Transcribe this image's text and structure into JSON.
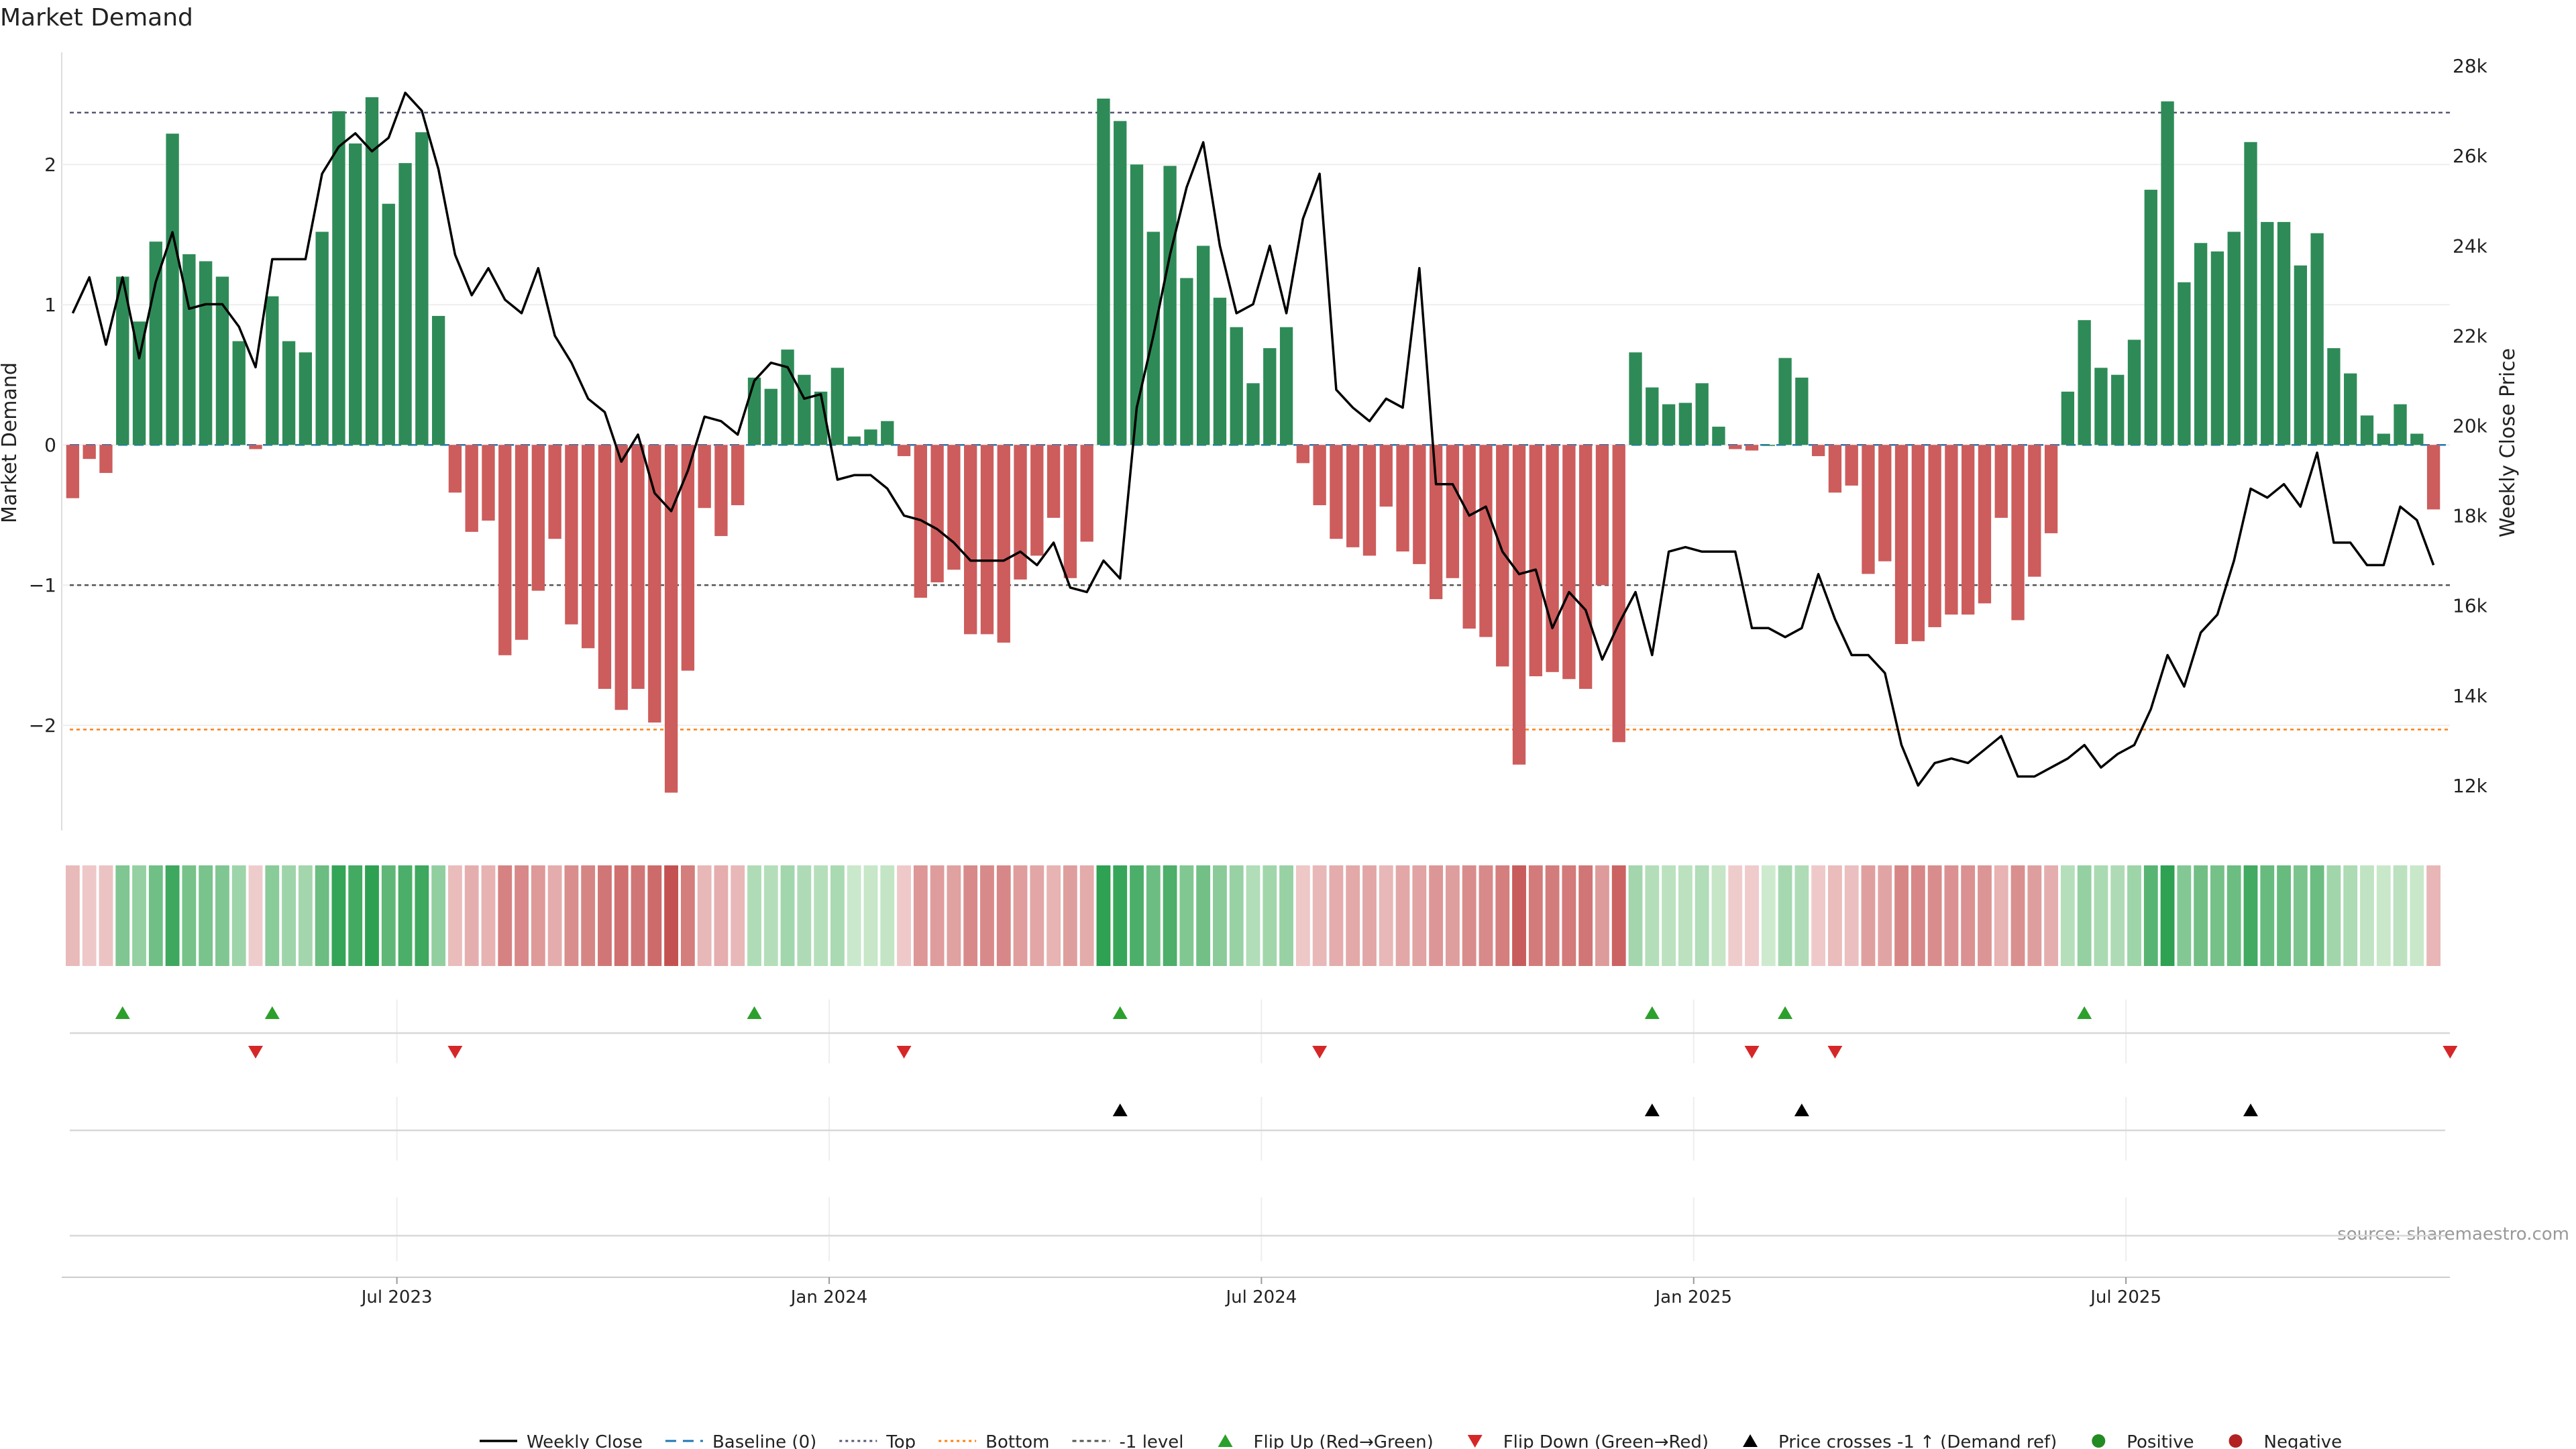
{
  "chart_data": {
    "type": "bar",
    "title": "Market Demand",
    "ylabel": "Market Demand",
    "ylabel_right": "Weekly Close Price",
    "source": "source: sharemaestro.com",
    "ylim": [
      -2.75,
      2.8
    ],
    "ylim_right": [
      11000,
      28300
    ],
    "yticks": [
      "2",
      "1",
      "0",
      "−1",
      "−2"
    ],
    "ytick_values": [
      2,
      1,
      0,
      -1,
      -2
    ],
    "yticks_right": [
      "28k",
      "26k",
      "24k",
      "22k",
      "20k",
      "18k",
      "16k",
      "14k",
      "12k"
    ],
    "ytick_right_values": [
      28000,
      26000,
      24000,
      22000,
      20000,
      18000,
      16000,
      14000,
      12000
    ],
    "xticks": [
      "Jul 2023",
      "Jan 2024",
      "Jul 2024",
      "Jan 2025",
      "Jul 2025"
    ],
    "xtick_indices": [
      20,
      46,
      72,
      98,
      124
    ],
    "reference_lines": {
      "top": 2.37,
      "bottom": -2.03,
      "minus_one": -1,
      "baseline": 0
    },
    "grid": true,
    "legend_position": "bottom",
    "series": [
      {
        "name": "Market Demand",
        "values": [
          -0.38,
          -0.1,
          -0.2,
          1.2,
          0.88,
          1.45,
          2.22,
          1.36,
          1.31,
          1.2,
          0.74,
          -0.03,
          1.06,
          0.74,
          0.66,
          1.52,
          2.38,
          2.15,
          2.48,
          1.72,
          2.01,
          2.23,
          0.92,
          -0.34,
          -0.62,
          -0.54,
          -1.5,
          -1.39,
          -1.04,
          -0.67,
          -1.28,
          -1.45,
          -1.74,
          -1.89,
          -1.74,
          -1.98,
          -2.48,
          -1.61,
          -0.45,
          -0.65,
          -0.43,
          0.48,
          0.4,
          0.68,
          0.5,
          0.38,
          0.55,
          0.06,
          0.11,
          0.17,
          -0.08,
          -1.09,
          -0.98,
          -0.89,
          -1.35,
          -1.35,
          -1.41,
          -0.96,
          -0.79,
          -0.52,
          -0.95,
          -0.69,
          2.47,
          2.31,
          2.0,
          1.52,
          1.99,
          1.19,
          1.42,
          1.05,
          0.84,
          0.44,
          0.69,
          0.84,
          -0.13,
          -0.43,
          -0.67,
          -0.73,
          -0.79,
          -0.44,
          -0.76,
          -0.85,
          -1.1,
          -0.95,
          -1.31,
          -1.37,
          -1.58,
          -2.28,
          -1.65,
          -1.62,
          -1.67,
          -1.74,
          -1.0,
          -2.12,
          0.66,
          0.41,
          0.29,
          0.3,
          0.44,
          0.13,
          -0.03,
          -0.04,
          0.0,
          0.62,
          0.48,
          -0.08,
          -0.34,
          -0.29,
          -0.92,
          -0.83,
          -1.42,
          -1.4,
          -1.3,
          -1.21,
          -1.21,
          -1.13,
          -0.52,
          -1.25,
          -0.94,
          -0.63,
          0.38,
          0.89,
          0.55,
          0.5,
          0.75,
          1.82,
          2.45,
          1.16,
          1.44,
          1.38,
          1.52,
          2.16,
          1.59,
          1.59,
          1.28,
          1.51,
          0.69,
          0.51,
          0.21,
          0.08,
          0.29,
          0.08,
          -0.46
        ]
      },
      {
        "name": "Weekly Close",
        "values": [
          22500,
          23300,
          21800,
          23300,
          21500,
          23200,
          24300,
          22600,
          22700,
          22700,
          22200,
          21300,
          23700,
          23700,
          23700,
          25600,
          26200,
          26500,
          26100,
          26400,
          27400,
          27000,
          25700,
          23800,
          22900,
          23500,
          22800,
          22500,
          23500,
          22000,
          21400,
          20600,
          20300,
          19200,
          19800,
          18500,
          18100,
          19000,
          20200,
          20100,
          19800,
          21000,
          21400,
          21300,
          20600,
          20700,
          18800,
          18900,
          18900,
          18600,
          18000,
          17900,
          17700,
          17400,
          17000,
          17000,
          17000,
          17200,
          16900,
          17400,
          16400,
          16300,
          17000,
          16600,
          20400,
          22000,
          23800,
          25300,
          26300,
          24000,
          22500,
          22700,
          24000,
          22500,
          24600,
          25600,
          20800,
          20400,
          20100,
          20600,
          20400,
          23500,
          18700,
          18700,
          18000,
          18200,
          17200,
          16700,
          16800,
          15500,
          16300,
          15900,
          14800,
          15600,
          16300,
          14900,
          17200,
          17300,
          17200,
          17200,
          17200,
          15500,
          15500,
          15300,
          15500,
          16700,
          15700,
          14900,
          14900,
          14500,
          12900,
          12000,
          12500,
          12600,
          12500,
          12800,
          13100,
          12200,
          12200,
          12400,
          12600,
          12900,
          12400,
          12700,
          12900,
          13700,
          14900,
          14200,
          15400,
          15800,
          17000,
          18600,
          18400,
          18700,
          18200,
          19400,
          17400,
          17400,
          16900,
          16900,
          18200,
          17900,
          16900
        ]
      }
    ],
    "markers": {
      "flip_up_indices": [
        3,
        12,
        41,
        63,
        95,
        103,
        121
      ],
      "flip_down_indices": [
        11,
        23,
        50,
        75,
        101,
        106,
        143
      ],
      "price_cross_indices": [
        63,
        95,
        104,
        131
      ]
    },
    "legend": [
      {
        "label": "Weekly Close",
        "kind": "line",
        "color": "#000000"
      },
      {
        "label": "Baseline (0)",
        "kind": "dashed",
        "color": "#1f77b4"
      },
      {
        "label": "Top",
        "kind": "dotted",
        "color": "#555577"
      },
      {
        "label": "Bottom",
        "kind": "dotted",
        "color": "#ff7f0e"
      },
      {
        "label": "-1 level",
        "kind": "dashed",
        "color": "#555555"
      },
      {
        "label": "Flip Up (Red→Green)",
        "kind": "tri-up",
        "color": "#2ca02c"
      },
      {
        "label": "Flip Down (Green→Red)",
        "kind": "tri-down",
        "color": "#d62728"
      },
      {
        "label": "Price crosses -1 ↑ (Demand ref)",
        "kind": "tri-up",
        "color": "#000000"
      },
      {
        "label": "Positive",
        "kind": "dot",
        "color": "#228b22"
      },
      {
        "label": "Negative",
        "kind": "dot",
        "color": "#b22222"
      }
    ],
    "colors": {
      "positive_bar": "#2e8b57",
      "negative_bar": "#cd5c5c",
      "line": "#000000"
    }
  }
}
